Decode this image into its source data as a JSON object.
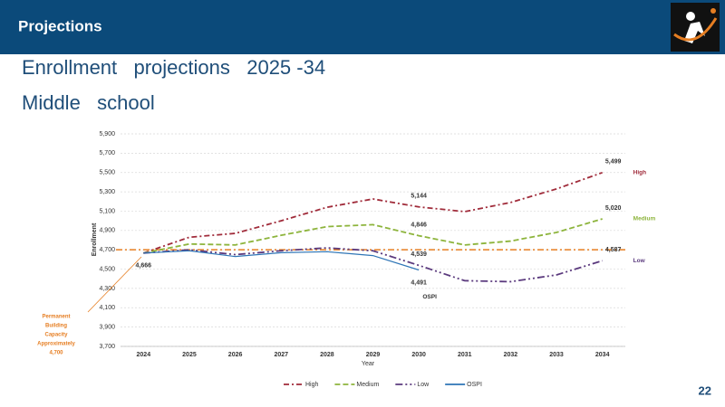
{
  "header": {
    "title": "Projections"
  },
  "slide_title": [
    "Enrollment   projections   2025 -34",
    "Middle   school"
  ],
  "page_number": "22",
  "chart_data": {
    "type": "line",
    "x_label": "Year",
    "y_label": "Enrollment",
    "categories": [
      "2024",
      "2025",
      "2026",
      "2027",
      "2028",
      "2029",
      "2030",
      "2031",
      "2032",
      "2033",
      "2034"
    ],
    "ylim": [
      3700,
      5900
    ],
    "yticks": [
      {
        "value": 3700,
        "label": "3,700"
      },
      {
        "value": 3900,
        "label": "3,900"
      },
      {
        "value": 4100,
        "label": "4,100"
      },
      {
        "value": 4300,
        "label": "4,300"
      },
      {
        "value": 4500,
        "label": "4,500"
      },
      {
        "value": 4700,
        "label": "4,700"
      },
      {
        "value": 4900,
        "label": "4,900"
      },
      {
        "value": 5100,
        "label": "5,100"
      },
      {
        "value": 5300,
        "label": "5,300"
      },
      {
        "value": 5500,
        "label": "5,500"
      },
      {
        "value": 5700,
        "label": "5,700"
      },
      {
        "value": 5900,
        "label": "5,900"
      }
    ],
    "grid": true,
    "legend": "bottom",
    "series": [
      {
        "name": "High",
        "color": "#a02b3a",
        "dash": "6 3 2 3",
        "values": [
          4666,
          4830,
          4870,
          5000,
          5140,
          5226,
          5144,
          5095,
          5190,
          5330,
          5499
        ],
        "value_labels": [
          "4,666",
          null,
          null,
          null,
          null,
          null,
          "5,144",
          null,
          null,
          null,
          "5,499"
        ]
      },
      {
        "name": "Medium",
        "color": "#8db43c",
        "dash": "6 3",
        "values": [
          4666,
          4760,
          4750,
          4850,
          4940,
          4960,
          4846,
          4750,
          4790,
          4880,
          5020
        ],
        "value_labels": [
          null,
          null,
          null,
          null,
          null,
          null,
          "4,846",
          null,
          null,
          null,
          "5,020"
        ]
      },
      {
        "name": "Low",
        "color": "#5b3a7e",
        "dash": "8 3 2 3 2 3",
        "values": [
          4666,
          4700,
          4650,
          4690,
          4720,
          4690,
          4539,
          4380,
          4370,
          4440,
          4587
        ],
        "value_labels": [
          null,
          null,
          null,
          null,
          null,
          null,
          "4,539",
          null,
          null,
          null,
          "4,587"
        ]
      },
      {
        "name": "OSPI",
        "color": "#2e75b6",
        "dash": "",
        "values": [
          4666,
          4690,
          4630,
          4670,
          4680,
          4640,
          4491,
          null,
          null,
          null,
          null
        ],
        "value_labels": [
          null,
          null,
          null,
          null,
          null,
          null,
          "4,491",
          null,
          null,
          null,
          null
        ]
      }
    ],
    "reference_line": {
      "value": 4700,
      "color": "#e67e22",
      "label_lines": [
        "Permanent",
        "Building",
        "Capacity",
        "Approximately",
        "4,700"
      ]
    }
  }
}
